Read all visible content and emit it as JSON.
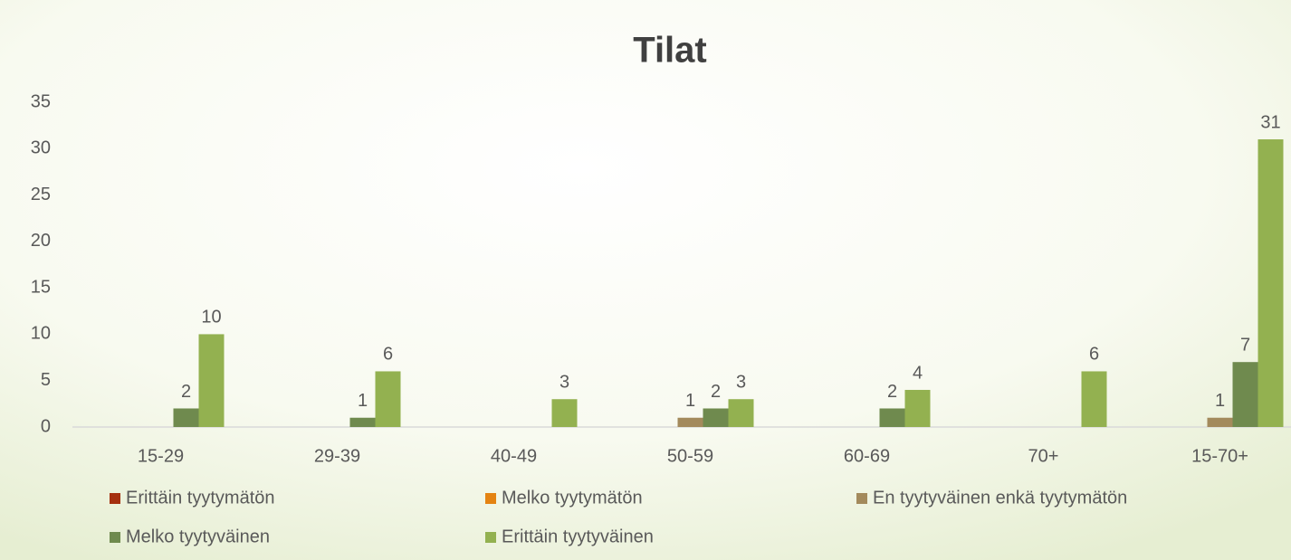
{
  "chart_data": {
    "type": "bar",
    "title": "Tilat",
    "categories": [
      "15-29",
      "29-39",
      "40-49",
      "50-59",
      "60-69",
      "70+",
      "15-70+"
    ],
    "series": [
      {
        "name": "Erittäin tyytymätön",
        "color": "#a5300f",
        "values": [
          null,
          null,
          null,
          null,
          null,
          null,
          null
        ]
      },
      {
        "name": "Melko tyytymätön",
        "color": "#e48312",
        "values": [
          null,
          null,
          null,
          null,
          null,
          null,
          null
        ]
      },
      {
        "name": "En tyytyväinen enkä tyytymätön",
        "color": "#a38a5c",
        "values": [
          null,
          null,
          null,
          1,
          null,
          null,
          1
        ]
      },
      {
        "name": "Melko tyytyväinen",
        "color": "#6f8a4e",
        "values": [
          2,
          1,
          null,
          2,
          2,
          null,
          7
        ]
      },
      {
        "name": "Erittäin tyytyväinen",
        "color": "#93b150",
        "values": [
          10,
          6,
          3,
          3,
          4,
          6,
          31
        ]
      }
    ],
    "ylim": [
      0,
      35
    ],
    "yticks": [
      0,
      5,
      10,
      15,
      20,
      25,
      30,
      35
    ],
    "legend": "bottom"
  }
}
